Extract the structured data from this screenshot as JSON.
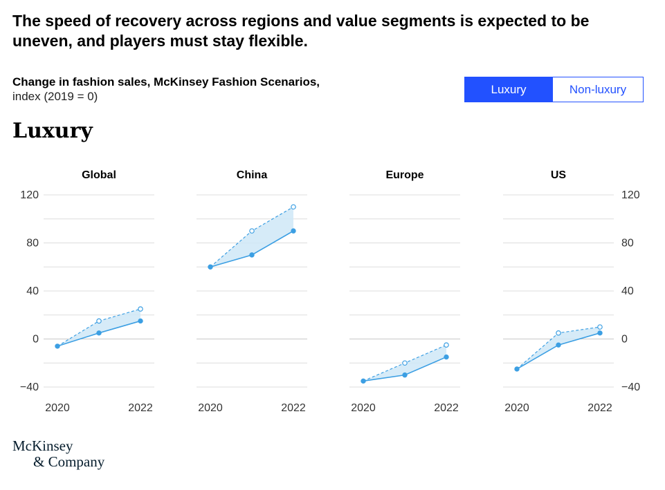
{
  "header": {
    "title": "The speed of recovery across regions and value segments is expected to be uneven, and players must stay flexible.",
    "subtitle_line1": "Change in fashion sales, McKinsey Fashion Scenarios,",
    "subtitle_line2": "index (2019 = 0)"
  },
  "toggle": {
    "luxury_label": "Luxury",
    "nonluxury_label": "Non-luxury",
    "selected": "Luxury"
  },
  "section_title": "Luxury",
  "colors": {
    "line": "#3c9fe3",
    "fill": "#cfe8f7",
    "grid": "#dddddd",
    "accent": "#2251ff"
  },
  "chart_data": {
    "type": "line",
    "x": [
      2020,
      2021,
      2022
    ],
    "x_tick_labels": [
      "2020",
      "2022"
    ],
    "ylim": [
      -40,
      120
    ],
    "y_ticks": [
      -40,
      0,
      40,
      80,
      120
    ],
    "y_tick_labels": [
      "−40",
      "0",
      "40",
      "80",
      "120"
    ],
    "grid": true,
    "panels": [
      {
        "name": "Global",
        "series": [
          {
            "style": "solid",
            "values": [
              -6,
              5,
              15
            ]
          },
          {
            "style": "dashed",
            "values": [
              -6,
              15,
              25
            ]
          }
        ]
      },
      {
        "name": "China",
        "series": [
          {
            "style": "solid",
            "values": [
              60,
              70,
              90
            ]
          },
          {
            "style": "dashed",
            "values": [
              60,
              90,
              110
            ]
          }
        ]
      },
      {
        "name": "Europe",
        "series": [
          {
            "style": "solid",
            "values": [
              -35,
              -30,
              -15
            ]
          },
          {
            "style": "dashed",
            "values": [
              -35,
              -20,
              -5
            ]
          }
        ]
      },
      {
        "name": "US",
        "series": [
          {
            "style": "solid",
            "values": [
              -25,
              -5,
              5
            ]
          },
          {
            "style": "dashed",
            "values": [
              -25,
              5,
              10
            ]
          }
        ]
      }
    ]
  },
  "logo": {
    "line1": "McKinsey",
    "line2": "& Company"
  }
}
